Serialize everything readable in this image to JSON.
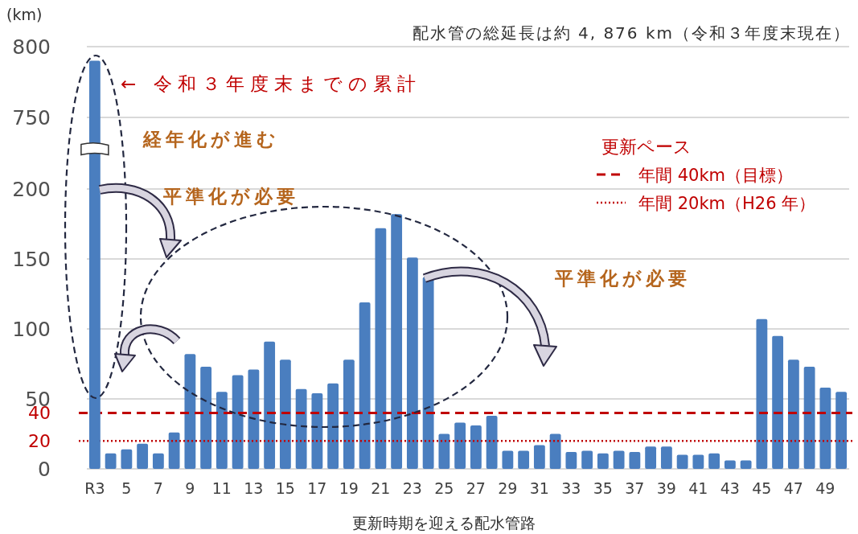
{
  "chart_data": [
    {
      "type": "bar",
      "title": "配水管の総延長は約 4, 876 km（令和３年度末現在）",
      "ylabel": "(km)",
      "values": [
        790,
        null,
        null,
        null,
        null,
        null,
        null,
        null,
        null,
        null,
        null,
        null,
        null,
        null,
        null,
        null,
        null,
        null,
        null,
        null,
        null,
        null,
        null,
        null,
        null,
        null,
        null,
        null,
        null,
        null,
        null,
        null,
        null,
        null,
        null,
        null,
        null,
        null,
        null,
        null,
        null,
        null,
        null,
        null,
        null,
        null,
        null,
        null
      ],
      "color": "#4a7ebf",
      "ylim": [
        750,
        800
      ],
      "yticks": [
        750,
        800
      ],
      "grid": "y",
      "tick_labels": "y",
      "annotations": [
        "← 令和３年度末までの累計",
        "経年化が進む"
      ]
    },
    {
      "type": "bar",
      "xlabel": "更新時期を迎える配水管路",
      "categories": [
        "R3",
        null,
        "5",
        null,
        "7",
        null,
        "9",
        null,
        "11",
        null,
        "13",
        null,
        "15",
        null,
        "17",
        null,
        "19",
        null,
        "21",
        null,
        "23",
        null,
        "25",
        null,
        "27",
        null,
        "29",
        null,
        "31",
        null,
        "33",
        null,
        "35",
        null,
        "37",
        null,
        "39",
        null,
        "41",
        null,
        "43",
        null,
        "45",
        null,
        "47",
        null,
        "49",
        null
      ],
      "values": [
        null,
        11,
        14,
        18,
        11,
        26,
        82,
        73,
        55,
        67,
        71,
        91,
        78,
        57,
        54,
        61,
        78,
        119,
        172,
        182,
        151,
        137,
        25,
        33,
        31,
        38,
        13,
        13,
        17,
        25,
        12,
        13,
        11,
        13,
        12,
        16,
        16,
        10,
        10,
        11,
        6,
        6,
        107,
        95,
        78,
        73,
        58,
        55
      ],
      "color": "#4a7ebf",
      "ylim": [
        0,
        200
      ],
      "yticks": [
        0,
        20,
        40,
        50,
        100,
        150,
        200
      ],
      "grid": "y",
      "legend": "top right",
      "legend_title": "更新ペース",
      "ref_lines": [
        {
          "axis": "y",
          "value": 40,
          "label": "年間 40km（目標）",
          "color": "#c00000",
          "line_style": "dashed"
        },
        {
          "axis": "y",
          "value": 20,
          "label": "年間 20km（H26 年）",
          "color": "#c00000",
          "line_style": "dotted"
        }
      ],
      "annotations": [
        "平準化が必要",
        "平準化が必要"
      ]
    }
  ]
}
